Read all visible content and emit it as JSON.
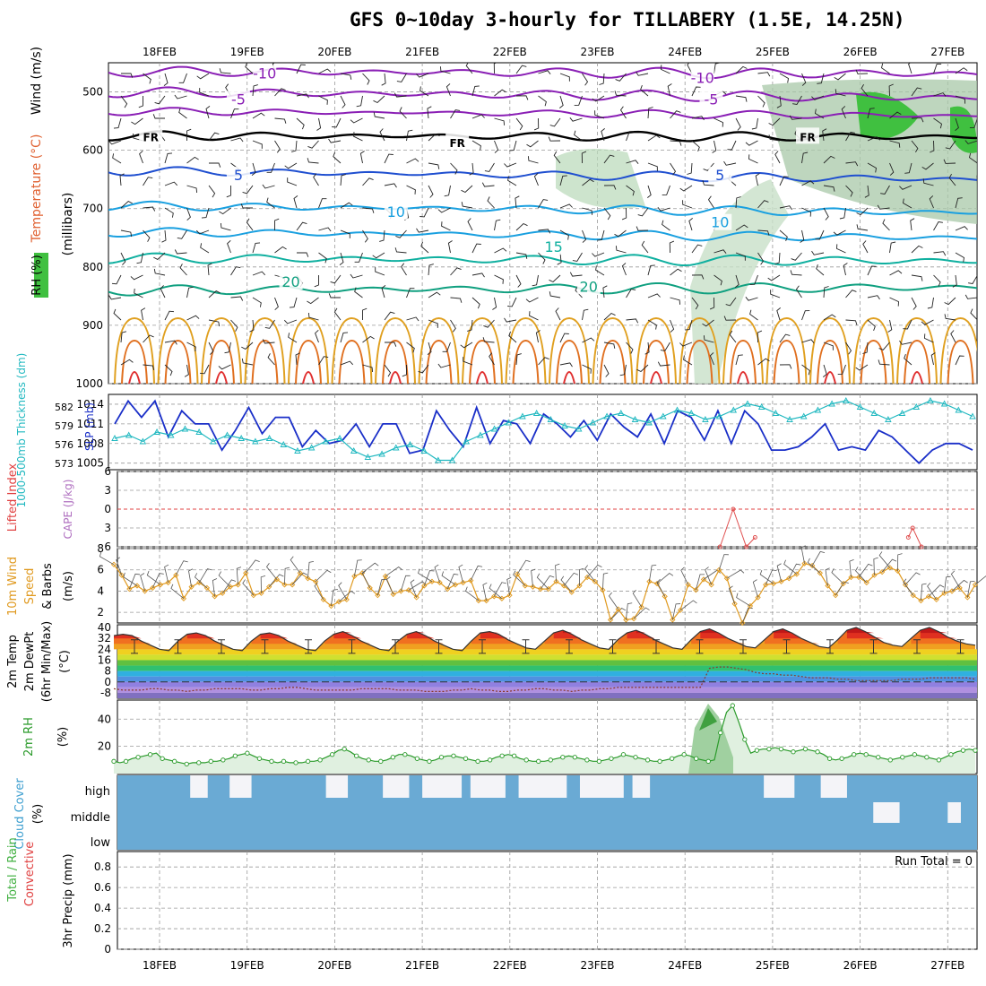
{
  "title": "GFS 0~10day 3-hourly for TILLABERY (1.5E, 14.25N)",
  "dates": [
    "18FEB",
    "19FEB",
    "20FEB",
    "21FEB",
    "22FEB",
    "23FEB",
    "24FEB",
    "25FEB",
    "26FEB",
    "27FEB"
  ],
  "colors": {
    "grid": "#9a9a9a",
    "temp_cold": "#8a1fb5",
    "temp_cool": "#1f4fd0",
    "temp_mid": "#1aa0e0",
    "temp_warm": "#10b0a0",
    "temp_hot": "#e0a020",
    "slp": "#1a2fc8",
    "thickness": "#20b8c0",
    "wind10": "#e09a20",
    "rh2m": "#2a9a2a",
    "cloud": "#6aaad4",
    "cape": "#b070c0",
    "li": "#e04040"
  },
  "chart_data": [
    {
      "type": "area",
      "panel": "upper-air",
      "ylabel_parts": [
        "RH (%)",
        "Temperature (°C)",
        "Wind (m/s)"
      ],
      "ylabel_units": "(millibars)",
      "y_ticks": [
        500,
        600,
        700,
        800,
        900,
        1000
      ],
      "ylim": [
        450,
        1000
      ],
      "grid": true,
      "contour_labels": [
        {
          "text": "-10",
          "x": 1.2,
          "y": 468,
          "series": "temp"
        },
        {
          "text": "-10",
          "x": 6.2,
          "y": 475,
          "series": "temp"
        },
        {
          "text": "-5",
          "x": 0.9,
          "y": 512,
          "series": "temp"
        },
        {
          "text": "-5",
          "x": 6.3,
          "y": 512,
          "series": "temp"
        },
        {
          "text": "FR",
          "x": -0.1,
          "y": 575,
          "series": "freezing"
        },
        {
          "text": "FR",
          "x": 3.4,
          "y": 585,
          "series": "freezing"
        },
        {
          "text": "FR",
          "x": 7.4,
          "y": 575,
          "series": "freezing"
        },
        {
          "text": "5",
          "x": 0.9,
          "y": 642,
          "series": "temp"
        },
        {
          "text": "5",
          "x": 6.4,
          "y": 642,
          "series": "temp"
        },
        {
          "text": "10",
          "x": 2.7,
          "y": 705,
          "series": "temp"
        },
        {
          "text": "10",
          "x": 6.4,
          "y": 723,
          "series": "temp"
        },
        {
          "text": "15",
          "x": 4.5,
          "y": 765,
          "series": "temp"
        },
        {
          "text": "20",
          "x": 1.5,
          "y": 825,
          "series": "temp"
        },
        {
          "text": "20",
          "x": 4.9,
          "y": 833,
          "series": "temp"
        }
      ]
    },
    {
      "type": "line",
      "panel": "slp-thickness",
      "ylabel_left": "1000-500mb Thickness (dm)",
      "ylabel_right": "SLP (mb)",
      "thickness_ticks": [
        573,
        576,
        579,
        582
      ],
      "slp_ticks": [
        1005,
        1008,
        1011,
        1014
      ],
      "series": [
        {
          "name": "SLP",
          "values": [
            1011,
            1013,
            1014.5,
            1013.5,
            1012,
            1013.5,
            1014.5,
            1011,
            1009,
            1011,
            1013,
            1012,
            1011,
            1012,
            1011,
            1008.5,
            1007,
            1009,
            1010,
            1010.5,
            1013.5,
            1013,
            1009.5,
            1010,
            1012,
            1013,
            1012,
            1010,
            1007.5,
            1008,
            1010,
            1010.5,
            1008,
            1006,
            1008.5,
            1011,
            1011,
            1009,
            1007.5,
            1008,
            1011,
            1012,
            1011,
            1010,
            1006.5,
            1005,
            1007,
            1011,
            1013,
            1013.5,
            1010,
            1008,
            1007.5,
            1012,
            1013.5,
            1011,
            1008,
            1009,
            1011.5,
            1013,
            1011,
            1009,
            1008,
            1008.5,
            1012.5,
            1014.5,
            1011,
            1008,
            1009,
            1012,
            1011.5,
            1010,
            1008.5,
            1009.5,
            1012.5,
            1013,
            1010.5,
            1009,
            1009,
            1012,
            1012.5,
            1010,
            1008,
            1008.5,
            1013,
            1014.5,
            1012,
            1009,
            1008.5,
            1010,
            1013,
            1011,
            1008,
            1009,
            1013,
            1014,
            1011,
            1008,
            1007,
            1005.5,
            1007,
            1008,
            1007.5,
            1008.5,
            1009,
            1008.5,
            1011,
            1010.5,
            1007,
            1006,
            1007.5,
            1008,
            1007,
            1008,
            1010,
            1011,
            1009,
            1007.5,
            1007,
            1006.5,
            1005,
            1006,
            1007,
            1007.5,
            1008,
            1008.5,
            1008,
            1007.5,
            1007,
            1008
          ]
        },
        {
          "name": "Thickness",
          "values": [
            577,
            577.5,
            577.5,
            577,
            576.5,
            577,
            578,
            578,
            577.5,
            578,
            578.5,
            578.5,
            578,
            577,
            576.5,
            577,
            577.5,
            577.5,
            577,
            576.5,
            576.5,
            577,
            577,
            576.5,
            576,
            575.5,
            575,
            575,
            575.5,
            576,
            576.5,
            577,
            577,
            576.5,
            575,
            574.5,
            574,
            574,
            574.5,
            575,
            575.5,
            576,
            576,
            575.5,
            575,
            574.5,
            573.5,
            573,
            573.5,
            575,
            576.5,
            577,
            577.5,
            578,
            578.5,
            579,
            579.5,
            580,
            580.5,
            581,
            581,
            580.5,
            580,
            579.5,
            579,
            578.5,
            578.5,
            579,
            579.5,
            580,
            580.5,
            581,
            581,
            580.5,
            580,
            579.5,
            579.5,
            580,
            580.5,
            581,
            581.5,
            581.5,
            581,
            580.5,
            580,
            580,
            580.5,
            581,
            581.5,
            582,
            582.5,
            582.5,
            582,
            581.5,
            581,
            580.5,
            580,
            580,
            580.5,
            581,
            581.5,
            582,
            582.5,
            583,
            583,
            582.5,
            582,
            581.5,
            581,
            580.5,
            580,
            580.5,
            581,
            581.5,
            582,
            582.5,
            583,
            583,
            582.5,
            582,
            581.5,
            581,
            580.5,
            580
          ]
        }
      ]
    },
    {
      "type": "line",
      "panel": "cape-li",
      "ylabel_left": "Lifted Index",
      "ylabel_right": "CAPE (J/kg)",
      "li_ticks": [
        -6,
        -3,
        0,
        3,
        6
      ],
      "series": [
        {
          "name": "CAPE",
          "points": [
            [
              6.4,
              8
            ],
            [
              6.55,
              4
            ],
            [
              6.7,
              8
            ],
            [
              6.8,
              7
            ],
            [
              8.55,
              7
            ],
            [
              8.6,
              6
            ],
            [
              8.7,
              8
            ]
          ]
        }
      ]
    },
    {
      "type": "line",
      "panel": "wind10m",
      "ylabel": "10m Wind Speed & Barbs (m/s)",
      "y_ticks": [
        2,
        4,
        6,
        8
      ],
      "ylim": [
        1,
        8
      ],
      "series": [
        {
          "name": "10m Wind Speed",
          "values": [
            6.5,
            5.5,
            4.2,
            4.5,
            4,
            4.3,
            4.6,
            4.8,
            5.5,
            3.3,
            4.4,
            4.8,
            4.3,
            3.5,
            3.8,
            4.4,
            4.6,
            5.7,
            3.6,
            3.8,
            4.4,
            5.1,
            4.6,
            4.6,
            5.7,
            5.2,
            4.9,
            3.2,
            2.6,
            3,
            3.2,
            5.4,
            5.7,
            4.3,
            3.6,
            5.4,
            3.7,
            4,
            4.1,
            3.4,
            4.5,
            4.9,
            4.8,
            4.2,
            4.6,
            4.8,
            5,
            3.1,
            3.1,
            3.5,
            3.3,
            3.6,
            5.6,
            4.5,
            4.4,
            4.2,
            4.2,
            4.9,
            4.5,
            3.9,
            4.5,
            5.3,
            4.9,
            4.1,
            1.3,
            2.3,
            1.3,
            1.4,
            2.5,
            4.9,
            4.7,
            3.5,
            1.3,
            2.2,
            4.6,
            4.1,
            5.1,
            4.6,
            6,
            5.2,
            2.8,
            1,
            2.6,
            3.4,
            4.6,
            4.7,
            4.9,
            5.2,
            5.6,
            6.6,
            6.4,
            5.7,
            4.5,
            3.6,
            4.7,
            5.3,
            5.3,
            4.8,
            5.5,
            5.8,
            6.2,
            5.9,
            4.6,
            3.6,
            3.1,
            3.5,
            3.2,
            3.8,
            4,
            4.3,
            3.4,
            4.6
          ]
        }
      ]
    },
    {
      "type": "line",
      "panel": "temp2m",
      "ylabel": "2m Temp 2m DewPt (6hr Min/Max) (°C)",
      "y_ticks": [
        -8,
        0,
        8,
        16,
        24,
        32,
        40
      ],
      "ylim": [
        -12,
        42
      ],
      "series": [
        {
          "name": "2m Temp",
          "values": [
            34,
            35,
            34,
            30,
            27,
            24,
            23,
            30,
            35,
            36,
            34,
            30,
            27,
            24,
            23,
            30,
            35,
            36,
            34,
            30,
            27,
            24,
            23,
            30,
            35,
            37,
            34,
            30,
            27,
            24,
            23,
            30,
            35,
            37,
            34,
            30,
            27,
            24,
            23,
            30,
            36,
            37,
            35,
            31,
            28,
            25,
            24,
            30,
            36,
            38,
            35,
            31,
            28,
            25,
            24,
            31,
            36,
            38,
            35,
            31,
            28,
            25,
            24,
            31,
            37,
            39,
            36,
            32,
            29,
            26,
            25,
            31,
            37,
            39,
            36,
            32,
            29,
            26,
            25,
            31,
            38,
            40,
            37,
            33,
            29,
            27,
            26,
            32,
            38,
            40,
            37,
            33,
            30,
            28,
            27
          ]
        },
        {
          "name": "2m DewPt",
          "values": [
            -5,
            -6,
            -6,
            -6,
            -5,
            -5,
            -6,
            -6,
            -7,
            -6,
            -6,
            -5,
            -5,
            -5,
            -5,
            -6,
            -6,
            -5,
            -5,
            -4,
            -4,
            -5,
            -6,
            -6,
            -6,
            -6,
            -6,
            -5,
            -5,
            -5,
            -5,
            -6,
            -6,
            -6,
            -7,
            -7,
            -7,
            -6,
            -6,
            -5,
            -6,
            -6,
            -7,
            -7,
            -6,
            -6,
            -5,
            -5,
            -6,
            -6,
            -7,
            -6,
            -6,
            -5,
            -5,
            -4,
            -4,
            -4,
            -4,
            -4,
            -4,
            -4,
            -4,
            -4,
            -4,
            10,
            11,
            11,
            10,
            9,
            7,
            6,
            6,
            5,
            5,
            4,
            3,
            3,
            3,
            2,
            2,
            1,
            1,
            1,
            1,
            1,
            2,
            2,
            2,
            3,
            3,
            3,
            3,
            3,
            2
          ]
        }
      ]
    },
    {
      "type": "line",
      "panel": "rh2m",
      "ylabel": "2m RH (%)",
      "y_ticks": [
        20,
        40
      ],
      "ylim": [
        0,
        54
      ],
      "series": [
        {
          "name": "2m RH",
          "values": [
            9,
            8,
            9,
            11,
            12,
            13,
            14,
            15,
            11,
            10,
            9,
            8,
            7,
            8,
            8,
            8,
            9,
            9,
            10,
            11,
            13,
            14,
            15,
            13,
            11,
            10,
            9,
            8,
            9,
            8,
            8,
            8,
            9,
            9,
            10,
            12,
            14,
            17,
            18,
            16,
            13,
            11,
            10,
            9,
            9,
            10,
            12,
            14,
            14,
            13,
            11,
            10,
            9,
            10,
            12,
            13,
            13,
            12,
            11,
            10,
            9,
            9,
            10,
            12,
            13,
            14,
            13,
            11,
            10,
            9,
            9,
            9,
            10,
            11,
            12,
            13,
            12,
            11,
            10,
            9,
            9,
            10,
            11,
            12,
            14,
            13,
            12,
            11,
            10,
            9,
            9,
            10,
            11,
            13,
            14,
            13,
            11,
            10,
            9,
            10,
            30,
            45,
            50,
            38,
            25,
            15,
            17,
            18,
            18,
            19,
            18,
            17,
            16,
            17,
            18,
            17,
            16,
            14,
            11,
            10,
            11,
            12,
            14,
            15,
            14,
            13,
            12,
            11,
            10,
            11,
            12,
            13,
            14,
            13,
            12,
            11,
            10,
            12,
            14,
            16,
            17,
            18,
            17
          ]
        }
      ]
    },
    {
      "type": "heatmap",
      "panel": "cloud",
      "ylabel": "Cloud Cover (%)",
      "y_categories": [
        "high",
        "middle",
        "low"
      ],
      "clear_blocks": [
        {
          "x0": 0.35,
          "x1": 0.55,
          "level": "high"
        },
        {
          "x0": 0.8,
          "x1": 1.05,
          "level": "high"
        },
        {
          "x0": 1.9,
          "x1": 2.15,
          "level": "high"
        },
        {
          "x0": 2.55,
          "x1": 2.85,
          "level": "high"
        },
        {
          "x0": 3.0,
          "x1": 3.45,
          "level": "high"
        },
        {
          "x0": 3.55,
          "x1": 3.95,
          "level": "high"
        },
        {
          "x0": 4.1,
          "x1": 4.65,
          "level": "high"
        },
        {
          "x0": 4.8,
          "x1": 5.3,
          "level": "high"
        },
        {
          "x0": 5.4,
          "x1": 5.6,
          "level": "high"
        },
        {
          "x0": 6.9,
          "x1": 7.25,
          "level": "high"
        },
        {
          "x0": 7.55,
          "x1": 7.85,
          "level": "high"
        },
        {
          "x0": 8.15,
          "x1": 8.45,
          "level": "middle"
        },
        {
          "x0": 9.0,
          "x1": 9.15,
          "level": "middle"
        }
      ],
      "label_values": [],
      "xlim": [
        0,
        10
      ]
    },
    {
      "type": "bar",
      "panel": "precip",
      "ylabel_left": "Total / Rain Convective",
      "ylabel_right": "3hr Precip (mm)",
      "y_ticks": [
        0,
        0.2,
        0.4,
        0.6,
        0.8
      ],
      "ylim": [
        0,
        0.95
      ],
      "run_total_label": "Run Total = 0",
      "values": []
    }
  ]
}
